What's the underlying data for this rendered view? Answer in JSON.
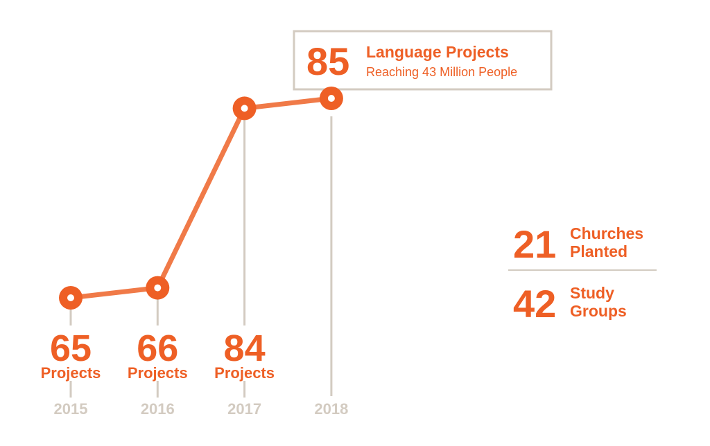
{
  "chart_data": {
    "type": "line",
    "categories": [
      "2015",
      "2016",
      "2017",
      "2018"
    ],
    "values": [
      65,
      66,
      84,
      85
    ],
    "caption": "Projects",
    "color": "#ee5f25",
    "callout": {
      "title": "Language Projects",
      "subtitle": "Reaching 43 Million People"
    },
    "stats": [
      {
        "value": 21,
        "label": [
          "Churches",
          "Planted"
        ]
      },
      {
        "value": 42,
        "label": [
          "Study",
          "Groups"
        ]
      }
    ]
  }
}
